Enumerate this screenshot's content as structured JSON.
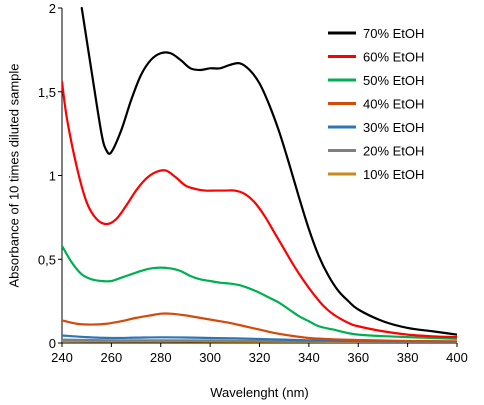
{
  "chart_data": {
    "type": "line",
    "title": "",
    "xlabel": "Wavelenght  (nm)",
    "ylabel": "Absorbance  of 10 times diluted sample",
    "xlim": [
      240,
      400
    ],
    "ylim": [
      0,
      2
    ],
    "xticks": [
      240,
      260,
      280,
      300,
      320,
      340,
      360,
      380,
      400
    ],
    "yticks": [
      {
        "value": 0,
        "label": "0"
      },
      {
        "value": 0.5,
        "label": "0,5"
      },
      {
        "value": 1,
        "label": "1"
      },
      {
        "value": 1.5,
        "label": "1,5"
      },
      {
        "value": 2,
        "label": "2"
      }
    ],
    "grid": false,
    "legend_position": "top-right",
    "series": [
      {
        "name": "70% EtOH",
        "color": "#000000",
        "points": [
          [
            248,
            2.0
          ],
          [
            252,
            1.62
          ],
          [
            256,
            1.25
          ],
          [
            258,
            1.15
          ],
          [
            260,
            1.14
          ],
          [
            264,
            1.27
          ],
          [
            268,
            1.45
          ],
          [
            272,
            1.6
          ],
          [
            276,
            1.69
          ],
          [
            280,
            1.73
          ],
          [
            284,
            1.73
          ],
          [
            288,
            1.69
          ],
          [
            292,
            1.64
          ],
          [
            296,
            1.63
          ],
          [
            300,
            1.64
          ],
          [
            304,
            1.64
          ],
          [
            308,
            1.66
          ],
          [
            312,
            1.67
          ],
          [
            316,
            1.63
          ],
          [
            320,
            1.55
          ],
          [
            324,
            1.42
          ],
          [
            328,
            1.26
          ],
          [
            332,
            1.07
          ],
          [
            336,
            0.87
          ],
          [
            340,
            0.68
          ],
          [
            344,
            0.52
          ],
          [
            348,
            0.4
          ],
          [
            352,
            0.31
          ],
          [
            356,
            0.25
          ],
          [
            360,
            0.2
          ],
          [
            370,
            0.13
          ],
          [
            380,
            0.09
          ],
          [
            390,
            0.07
          ],
          [
            400,
            0.05
          ]
        ]
      },
      {
        "name": "60% EtOH",
        "color": "#ff0000",
        "points": [
          [
            240,
            1.56
          ],
          [
            242,
            1.34
          ],
          [
            246,
            1.05
          ],
          [
            250,
            0.84
          ],
          [
            254,
            0.74
          ],
          [
            258,
            0.71
          ],
          [
            262,
            0.74
          ],
          [
            266,
            0.82
          ],
          [
            270,
            0.91
          ],
          [
            274,
            0.98
          ],
          [
            278,
            1.02
          ],
          [
            282,
            1.03
          ],
          [
            286,
            0.99
          ],
          [
            290,
            0.94
          ],
          [
            294,
            0.92
          ],
          [
            298,
            0.91
          ],
          [
            302,
            0.91
          ],
          [
            306,
            0.91
          ],
          [
            310,
            0.91
          ],
          [
            314,
            0.89
          ],
          [
            318,
            0.84
          ],
          [
            322,
            0.76
          ],
          [
            326,
            0.66
          ],
          [
            330,
            0.56
          ],
          [
            334,
            0.46
          ],
          [
            338,
            0.37
          ],
          [
            342,
            0.29
          ],
          [
            346,
            0.22
          ],
          [
            350,
            0.17
          ],
          [
            356,
            0.12
          ],
          [
            360,
            0.1
          ],
          [
            370,
            0.07
          ],
          [
            380,
            0.05
          ],
          [
            390,
            0.04
          ],
          [
            400,
            0.035
          ]
        ]
      },
      {
        "name": "50% EtOH",
        "color": "#00b050",
        "points": [
          [
            240,
            0.58
          ],
          [
            244,
            0.48
          ],
          [
            248,
            0.41
          ],
          [
            252,
            0.38
          ],
          [
            256,
            0.37
          ],
          [
            260,
            0.37
          ],
          [
            264,
            0.39
          ],
          [
            268,
            0.41
          ],
          [
            272,
            0.43
          ],
          [
            276,
            0.445
          ],
          [
            280,
            0.45
          ],
          [
            284,
            0.445
          ],
          [
            288,
            0.43
          ],
          [
            292,
            0.4
          ],
          [
            296,
            0.38
          ],
          [
            300,
            0.37
          ],
          [
            304,
            0.36
          ],
          [
            308,
            0.355
          ],
          [
            312,
            0.345
          ],
          [
            316,
            0.325
          ],
          [
            320,
            0.3
          ],
          [
            324,
            0.27
          ],
          [
            328,
            0.24
          ],
          [
            332,
            0.2
          ],
          [
            336,
            0.16
          ],
          [
            340,
            0.13
          ],
          [
            344,
            0.1
          ],
          [
            350,
            0.08
          ],
          [
            360,
            0.05
          ],
          [
            380,
            0.035
          ],
          [
            400,
            0.025
          ]
        ]
      },
      {
        "name": "40% EtOH",
        "color": "#d34a0a",
        "points": [
          [
            240,
            0.135
          ],
          [
            246,
            0.115
          ],
          [
            252,
            0.11
          ],
          [
            258,
            0.115
          ],
          [
            264,
            0.13
          ],
          [
            270,
            0.15
          ],
          [
            276,
            0.165
          ],
          [
            280,
            0.175
          ],
          [
            284,
            0.175
          ],
          [
            290,
            0.165
          ],
          [
            296,
            0.15
          ],
          [
            302,
            0.135
          ],
          [
            308,
            0.12
          ],
          [
            314,
            0.1
          ],
          [
            320,
            0.08
          ],
          [
            326,
            0.06
          ],
          [
            332,
            0.045
          ],
          [
            340,
            0.03
          ],
          [
            350,
            0.022
          ],
          [
            360,
            0.018
          ],
          [
            380,
            0.012
          ],
          [
            400,
            0.01
          ]
        ]
      },
      {
        "name": "30% EtOH",
        "color": "#2e75b6",
        "points": [
          [
            240,
            0.045
          ],
          [
            250,
            0.035
          ],
          [
            260,
            0.03
          ],
          [
            270,
            0.032
          ],
          [
            280,
            0.034
          ],
          [
            290,
            0.033
          ],
          [
            300,
            0.03
          ],
          [
            310,
            0.028
          ],
          [
            320,
            0.024
          ],
          [
            330,
            0.02
          ],
          [
            340,
            0.016
          ],
          [
            360,
            0.012
          ],
          [
            380,
            0.01
          ],
          [
            400,
            0.008
          ]
        ]
      },
      {
        "name": "20% EtOH",
        "color": "#7f7f7f",
        "points": [
          [
            240,
            0.02
          ],
          [
            260,
            0.016
          ],
          [
            280,
            0.016
          ],
          [
            300,
            0.015
          ],
          [
            320,
            0.012
          ],
          [
            340,
            0.01
          ],
          [
            360,
            0.008
          ],
          [
            380,
            0.007
          ],
          [
            400,
            0.006
          ]
        ]
      },
      {
        "name": "10% EtOH",
        "color": "#c98a1a",
        "points": [
          [
            240,
            0.012
          ],
          [
            260,
            0.01
          ],
          [
            280,
            0.01
          ],
          [
            300,
            0.009
          ],
          [
            320,
            0.008
          ],
          [
            340,
            0.007
          ],
          [
            360,
            0.006
          ],
          [
            380,
            0.005
          ],
          [
            400,
            0.005
          ]
        ]
      }
    ]
  }
}
